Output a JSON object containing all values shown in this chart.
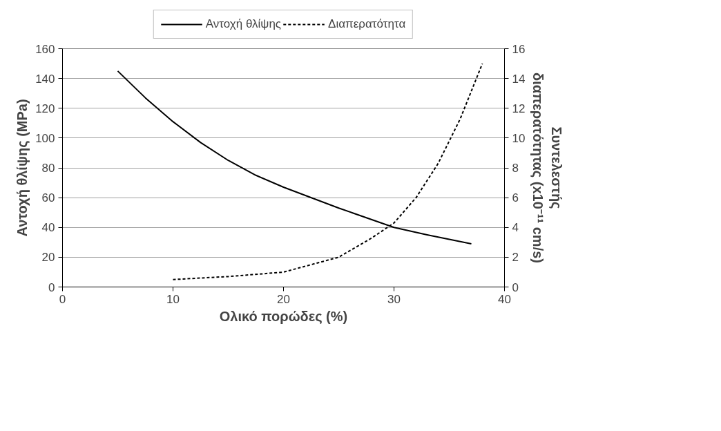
{
  "chart_data": {
    "type": "line",
    "xlabel": "Ολικό πορώδες (%)",
    "ylabel": "Αντοχή θλίψης (MPa)",
    "y2label": "Συντελεστής\nδιαπερατότητας (x10⁻¹¹ cm/s)",
    "xlim": [
      0,
      40
    ],
    "xticks": [
      0,
      10,
      20,
      30,
      40
    ],
    "ylim": [
      0,
      160
    ],
    "yticks": [
      0,
      20,
      40,
      60,
      80,
      100,
      120,
      140,
      160
    ],
    "y2lim": [
      0,
      16
    ],
    "y2ticks": [
      0,
      2,
      4,
      6,
      8,
      10,
      12,
      14,
      16
    ],
    "grid": "y",
    "legend": "top",
    "marker": "none",
    "series": [
      {
        "name": "Αντοχή θλίψης",
        "color": "#000000",
        "line_style": "solid",
        "x": [
          5,
          7.5,
          10,
          12.5,
          15,
          17.5,
          20,
          25,
          30,
          33,
          37
        ],
        "values": [
          145,
          127,
          111,
          97,
          85,
          75,
          67,
          53,
          40,
          35,
          29
        ]
      },
      {
        "name": "Διαπερατότητα",
        "color": "#000000",
        "line_style": "dashed",
        "axis": "y2",
        "x": [
          10,
          15,
          20,
          25,
          28,
          30,
          32,
          34,
          36,
          38
        ],
        "values": [
          0.5,
          0.7,
          1.0,
          2.0,
          3.3,
          4.3,
          6,
          8.3,
          11.3,
          15
        ]
      }
    ]
  }
}
